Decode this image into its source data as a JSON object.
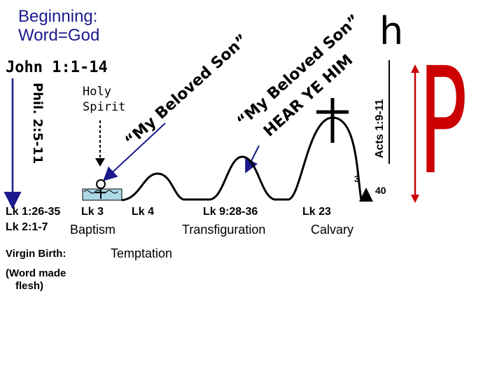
{
  "heading": {
    "line1": "Beginning:",
    "line2": "Word=God"
  },
  "john_ref": "John 1:1-14",
  "phil_ref": "Phil. 2:5-11",
  "holy_spirit": {
    "line1": "Holy",
    "line2": "Spirit"
  },
  "voice1": {
    "line1": "“My Beloved Son”"
  },
  "voice2": {
    "line1": "“My Beloved Son”",
    "line2": "HEAR YE HIM"
  },
  "acts_ref": "Acts 1:9-11",
  "letter_h": "h",
  "letter_p": "P",
  "num_3": "3",
  "num_40": "40",
  "refs": {
    "lk1": "Lk 1:26-35",
    "lk2": "Lk 2:1-7",
    "lk3": "Lk 3",
    "lk4": "Lk 4",
    "lk9": "Lk 9:28-36",
    "lk23": "Lk 23"
  },
  "events": {
    "baptism": "Baptism",
    "transfiguration": "Transfiguration",
    "calvary": "Calvary",
    "virgin_birth": "Virgin Birth:",
    "word_made_1": "(Word made",
    "word_made_2": "flesh)",
    "temptation": "Temptation"
  },
  "colors": {
    "title": "#1a1a8c",
    "arrow": "#1a1a8c",
    "water": "#add8e6",
    "lines": "#000000"
  }
}
